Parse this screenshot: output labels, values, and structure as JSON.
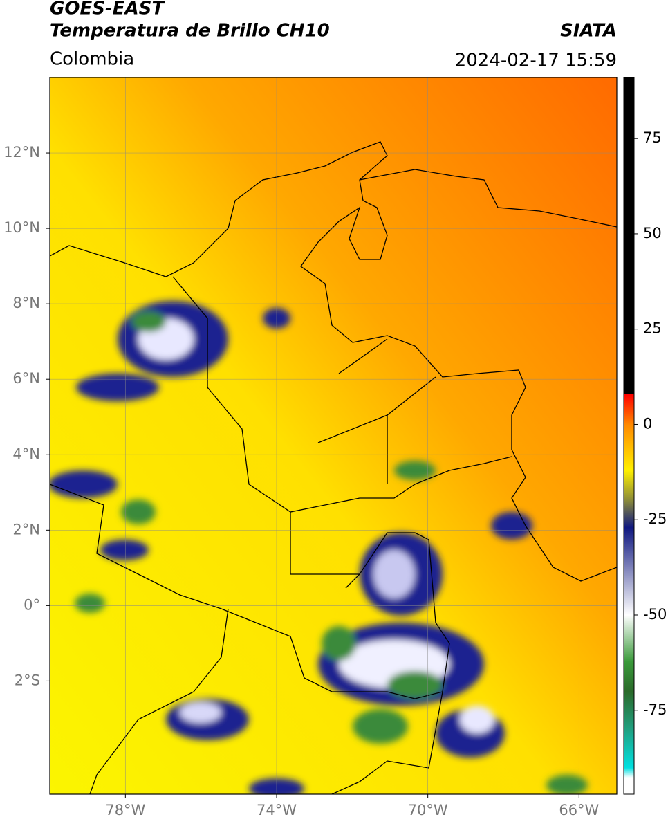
{
  "header": {
    "title": "GOES-EAST",
    "subtitle": "Temperatura de Brillo CH10",
    "source": "SIATA",
    "region": "Colombia",
    "datetime": "2024-02-17 15:59"
  },
  "map": {
    "lonlim": [
      -80,
      -65
    ],
    "latlim": [
      -5,
      14
    ],
    "lonticks": [
      {
        "value": -78,
        "label": "78°W"
      },
      {
        "value": -74,
        "label": "74°W"
      },
      {
        "value": -70,
        "label": "70°W"
      },
      {
        "value": -66,
        "label": "66°W"
      }
    ],
    "latticks": [
      {
        "value": 12,
        "label": "12°N"
      },
      {
        "value": 10,
        "label": "10°N"
      },
      {
        "value": 8,
        "label": "8°N"
      },
      {
        "value": 6,
        "label": "6°N"
      },
      {
        "value": 4,
        "label": "4°N"
      },
      {
        "value": 2,
        "label": "2°N"
      },
      {
        "value": 0,
        "label": "0°"
      },
      {
        "value": -2,
        "label": "2°S"
      }
    ],
    "grid": true
  },
  "colorbar": {
    "lim": [
      -97,
      91
    ],
    "ticks": [
      75,
      50,
      25,
      0,
      -25,
      -50,
      -75
    ]
  }
}
